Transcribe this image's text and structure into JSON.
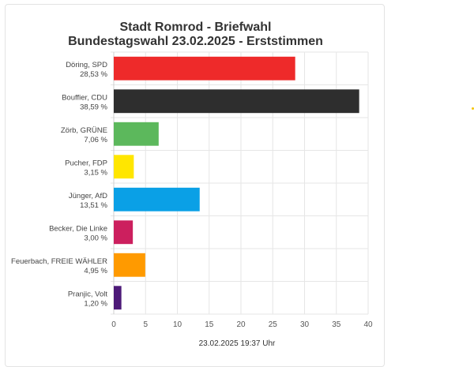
{
  "chart_data": {
    "type": "bar",
    "orientation": "horizontal",
    "title": "Stadt Romrod - Briefwahl",
    "subtitle": "Bundestagswahl 23.02.2025  - Erststimmen",
    "categories": [
      {
        "name": "Döring, SPD",
        "label": "28,53 %"
      },
      {
        "name": "Bouffier, CDU",
        "label": "38,59 %"
      },
      {
        "name": "Zörb, GRÜNE",
        "label": "7,06 %"
      },
      {
        "name": "Pucher, FDP",
        "label": "3,15 %"
      },
      {
        "name": "Jünger, AfD",
        "label": "13,51 %"
      },
      {
        "name": "Becker, Die Linke",
        "label": "3,00 %"
      },
      {
        "name": "Feuerbach, FREIE WÄHLER",
        "label": "4,95 %"
      },
      {
        "name": "Pranjic, Volt",
        "label": "1,20 %"
      }
    ],
    "values": [
      28.53,
      38.59,
      7.06,
      3.15,
      13.51,
      3.0,
      4.95,
      1.2
    ],
    "colors": [
      "#ee2a2a",
      "#2e2e2e",
      "#5cb85c",
      "#ffe600",
      "#0aa0e6",
      "#cc1f5e",
      "#ff9a00",
      "#4d1a78"
    ],
    "xlim": [
      0,
      40
    ],
    "xticks": [
      "0",
      "5",
      "10",
      "15",
      "20",
      "25",
      "30",
      "35",
      "40"
    ],
    "grid": true,
    "legend": "none",
    "footer": "23.02.2025 19:37 Uhr"
  },
  "accent_dot_color": "#f5c400"
}
